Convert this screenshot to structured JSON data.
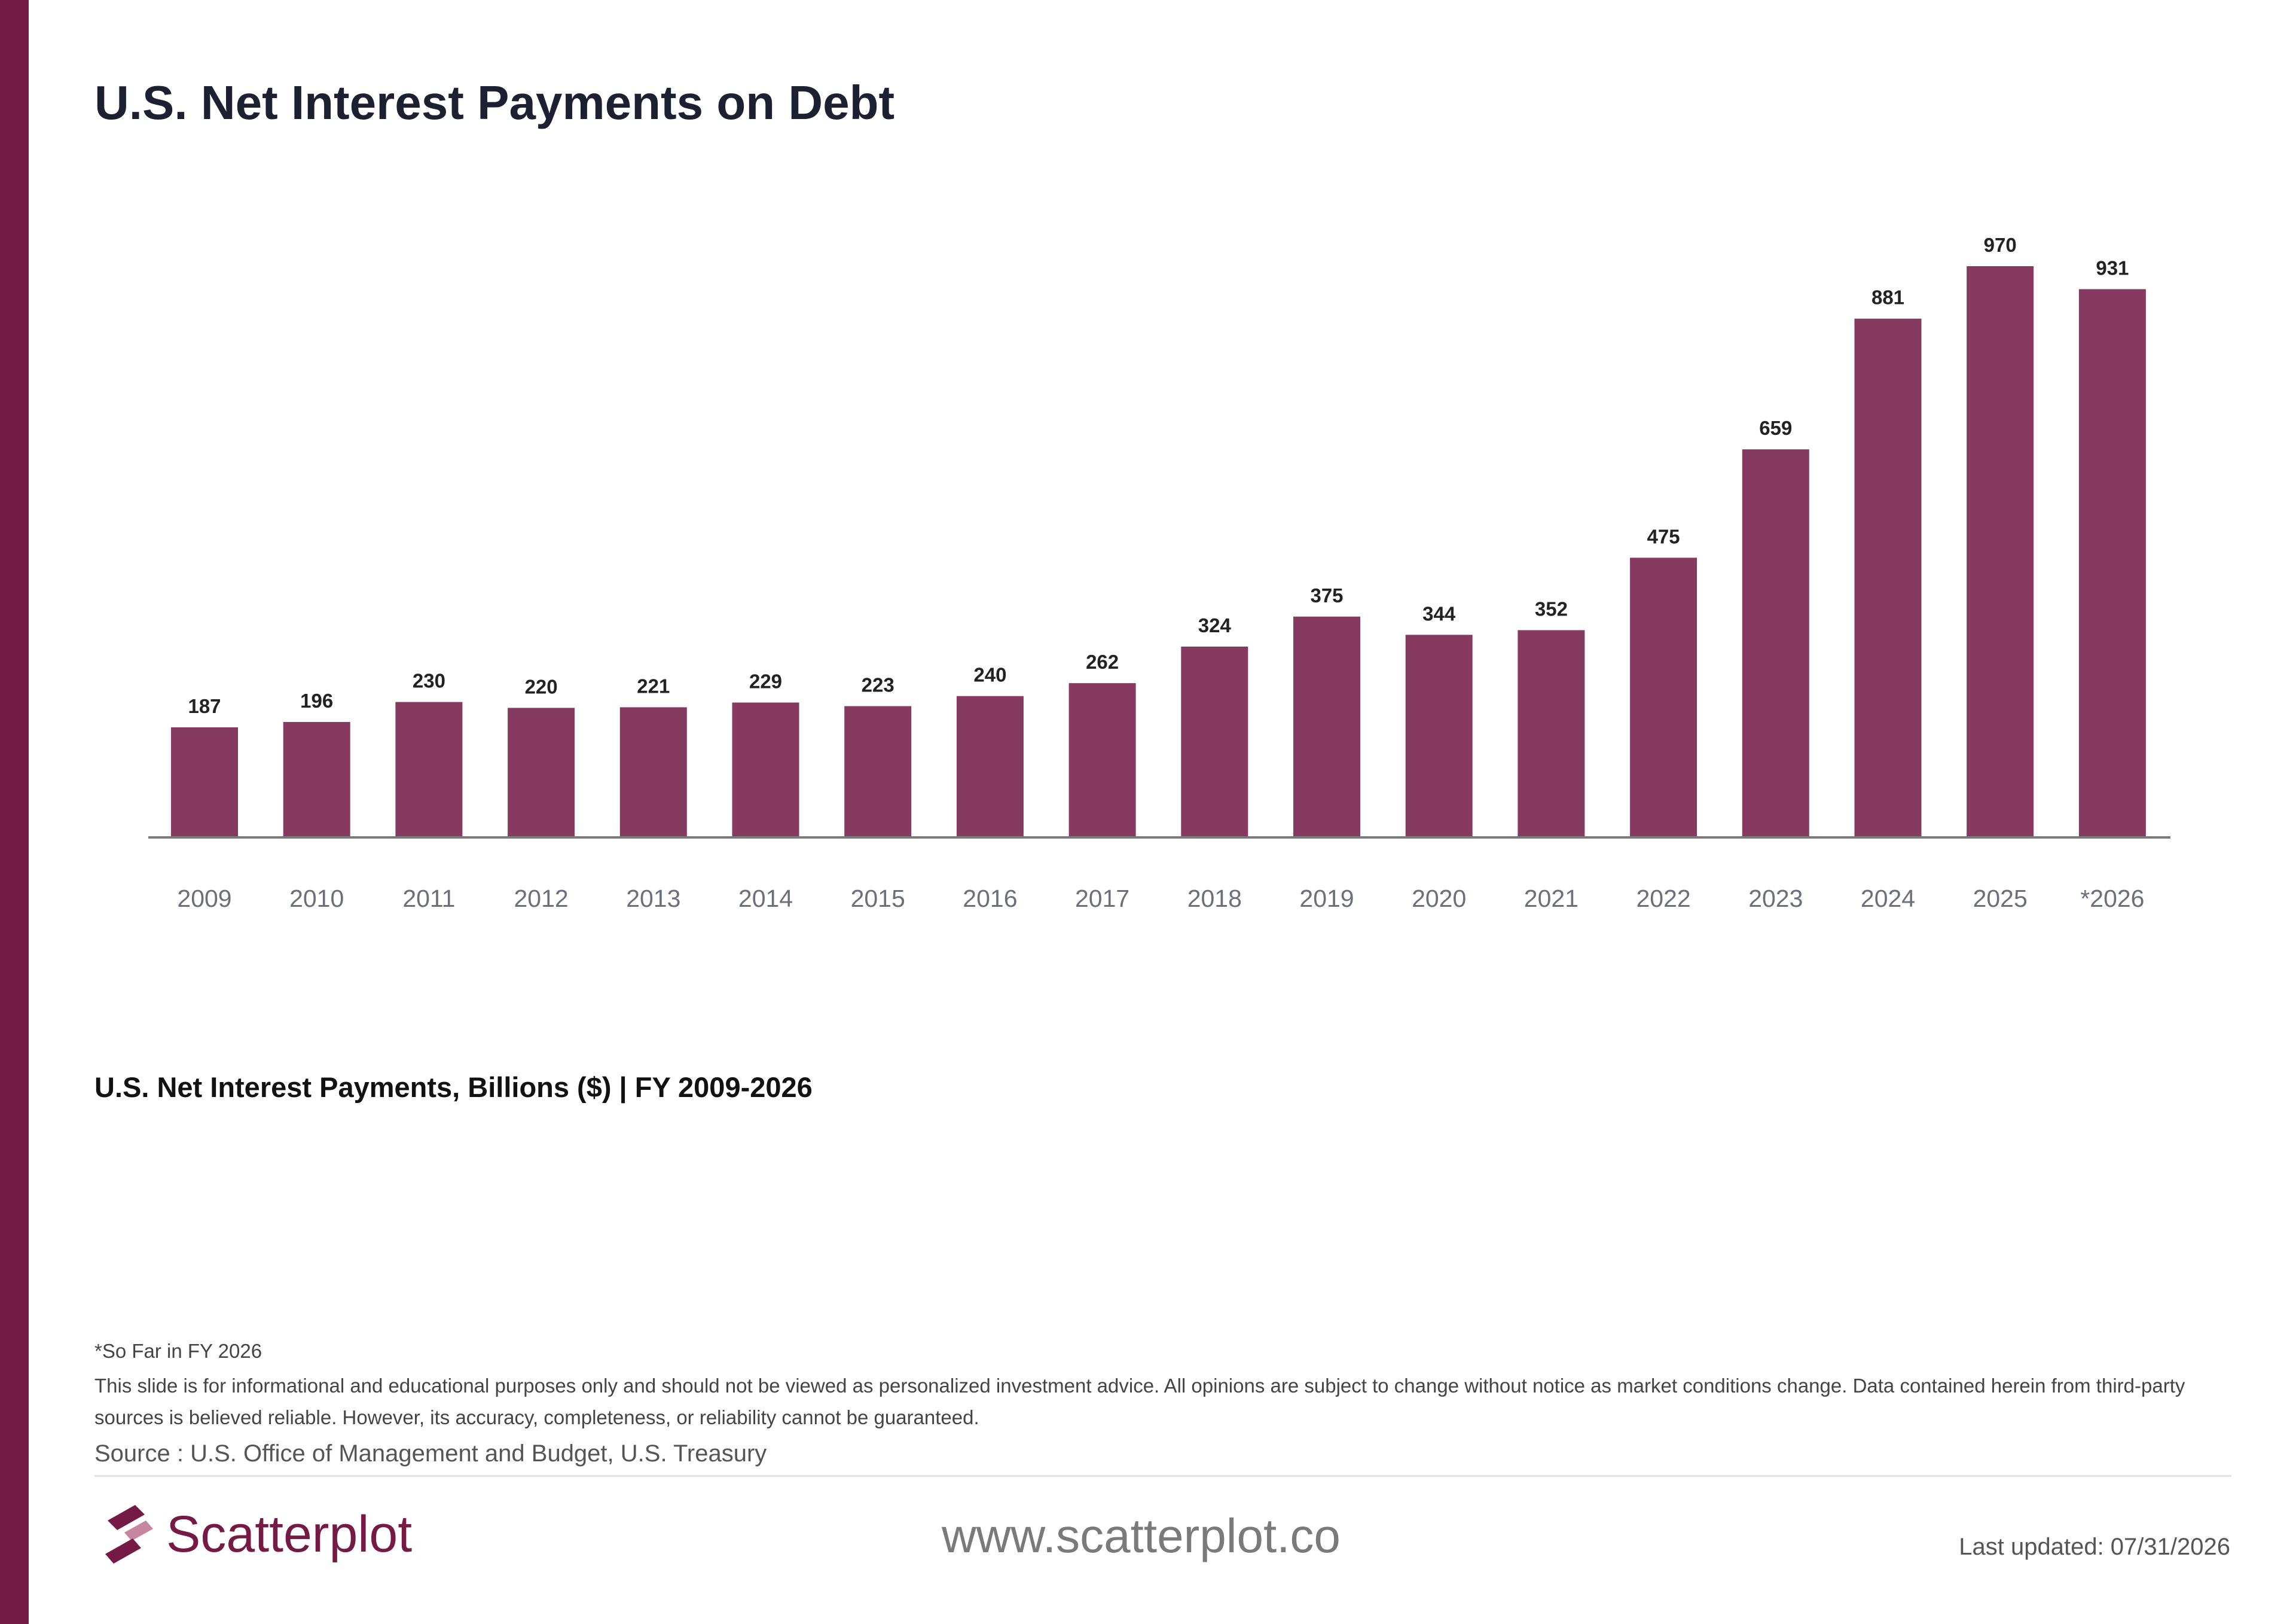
{
  "title": "U.S. Net Interest Payments on Debt",
  "subtitle": "U.S. Net Interest Payments, Billions ($) | FY 2009-2026",
  "footnote": "*So Far in FY 2026",
  "disclaimer": "This slide is for informational and educational purposes only and should not be viewed as personalized investment advice. All opinions are subject to change without notice as market conditions change. Data contained herein from third-party sources is believed reliable. However, its accuracy, completeness, or reliability cannot be guaranteed.",
  "source": "Source : U.S. Office of Management and Budget, U.S. Treasury",
  "brand": {
    "name": "Scatterplot",
    "website": "www.scatterplot.co",
    "last_updated": "Last updated: 07/31/2026",
    "color": "#751945"
  },
  "chart_data": {
    "type": "bar",
    "categories": [
      "2009",
      "2010",
      "2011",
      "2012",
      "2013",
      "2014",
      "2015",
      "2016",
      "2017",
      "2018",
      "2019",
      "2020",
      "2021",
      "2022",
      "2023",
      "2024",
      "2025",
      "*2026"
    ],
    "values": [
      187,
      196,
      230,
      220,
      221,
      229,
      223,
      240,
      262,
      324,
      375,
      344,
      352,
      475,
      659,
      881,
      970,
      931
    ],
    "data_labels": [
      "187",
      "196",
      "230",
      "220",
      "221",
      "229",
      "223",
      "240",
      "262",
      "324",
      "375",
      "344",
      "352",
      "475",
      "659",
      "881",
      "970",
      "931"
    ],
    "ylim": [
      0,
      1000
    ],
    "bar_color": "#873a5f",
    "grid": false,
    "legend": "none"
  }
}
